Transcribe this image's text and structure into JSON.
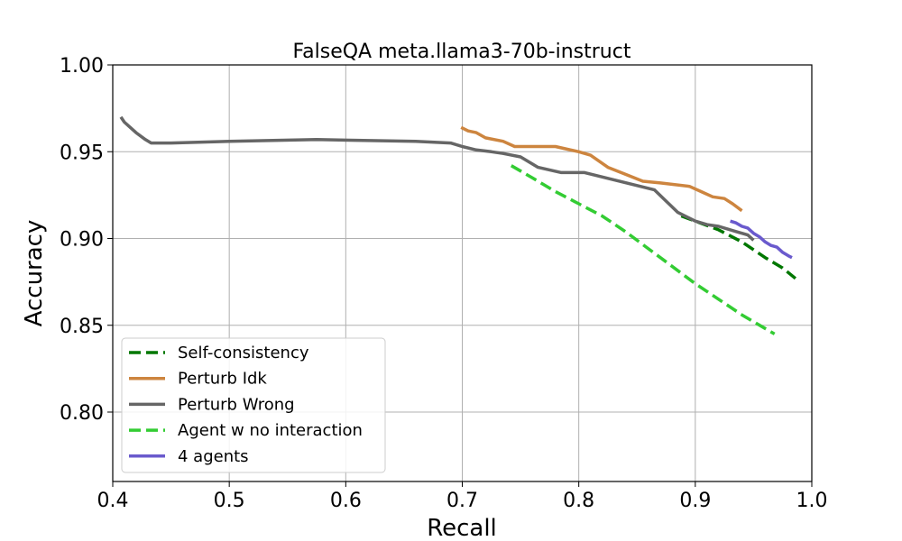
{
  "chart_data": {
    "type": "line",
    "title": "FalseQA meta.llama3-70b-instruct",
    "xlabel": "Recall",
    "ylabel": "Accuracy",
    "xlim": [
      0.4,
      1.0
    ],
    "ylim": [
      0.76,
      1.0
    ],
    "xticks": [
      "0.4",
      "0.5",
      "0.6",
      "0.7",
      "0.8",
      "0.9",
      "1.0"
    ],
    "xtick_values": [
      0.4,
      0.5,
      0.6,
      0.7,
      0.8,
      0.9,
      1.0
    ],
    "yticks": [
      "0.80",
      "0.85",
      "0.90",
      "0.95",
      "1.00"
    ],
    "ytick_values": [
      0.8,
      0.85,
      0.9,
      0.95,
      1.0
    ],
    "grid": true,
    "legend_position": "lower-left",
    "series": [
      {
        "name": "Self-consistency",
        "color": "#007700",
        "dash": true,
        "points": [
          [
            0.888,
            0.913
          ],
          [
            0.9,
            0.91
          ],
          [
            0.92,
            0.905
          ],
          [
            0.94,
            0.898
          ],
          [
            0.96,
            0.889
          ],
          [
            0.975,
            0.883
          ],
          [
            0.986,
            0.877
          ]
        ]
      },
      {
        "name": "Perturb Idk",
        "color": "#cd853f",
        "dash": false,
        "points": [
          [
            0.699,
            0.964
          ],
          [
            0.705,
            0.962
          ],
          [
            0.712,
            0.961
          ],
          [
            0.72,
            0.958
          ],
          [
            0.735,
            0.956
          ],
          [
            0.745,
            0.953
          ],
          [
            0.76,
            0.953
          ],
          [
            0.78,
            0.953
          ],
          [
            0.8,
            0.95
          ],
          [
            0.81,
            0.948
          ],
          [
            0.825,
            0.941
          ],
          [
            0.84,
            0.937
          ],
          [
            0.855,
            0.933
          ],
          [
            0.87,
            0.932
          ],
          [
            0.895,
            0.93
          ],
          [
            0.905,
            0.927
          ],
          [
            0.915,
            0.924
          ],
          [
            0.925,
            0.923
          ],
          [
            0.932,
            0.92
          ],
          [
            0.94,
            0.916
          ]
        ]
      },
      {
        "name": "Perturb Wrong",
        "color": "#666666",
        "dash": false,
        "points": [
          [
            0.407,
            0.97
          ],
          [
            0.41,
            0.967
          ],
          [
            0.415,
            0.964
          ],
          [
            0.42,
            0.961
          ],
          [
            0.428,
            0.957
          ],
          [
            0.433,
            0.955
          ],
          [
            0.45,
            0.955
          ],
          [
            0.5,
            0.956
          ],
          [
            0.575,
            0.957
          ],
          [
            0.66,
            0.956
          ],
          [
            0.69,
            0.955
          ],
          [
            0.7,
            0.953
          ],
          [
            0.712,
            0.951
          ],
          [
            0.725,
            0.95
          ],
          [
            0.735,
            0.949
          ],
          [
            0.75,
            0.947
          ],
          [
            0.765,
            0.941
          ],
          [
            0.785,
            0.938
          ],
          [
            0.805,
            0.938
          ],
          [
            0.865,
            0.928
          ],
          [
            0.885,
            0.915
          ],
          [
            0.9,
            0.91
          ],
          [
            0.91,
            0.908
          ],
          [
            0.92,
            0.907
          ],
          [
            0.935,
            0.904
          ],
          [
            0.945,
            0.902
          ],
          [
            0.95,
            0.899
          ]
        ]
      },
      {
        "name": "Agent w no interaction",
        "color": "#33cc33",
        "dash": true,
        "points": [
          [
            0.742,
            0.942
          ],
          [
            0.76,
            0.935
          ],
          [
            0.78,
            0.927
          ],
          [
            0.8,
            0.92
          ],
          [
            0.82,
            0.913
          ],
          [
            0.84,
            0.904
          ],
          [
            0.86,
            0.894
          ],
          [
            0.88,
            0.884
          ],
          [
            0.9,
            0.874
          ],
          [
            0.92,
            0.865
          ],
          [
            0.94,
            0.856
          ],
          [
            0.968,
            0.845
          ]
        ]
      },
      {
        "name": "4 agents",
        "color": "#6a5acd",
        "dash": false,
        "points": [
          [
            0.93,
            0.91
          ],
          [
            0.935,
            0.909
          ],
          [
            0.94,
            0.907
          ],
          [
            0.945,
            0.906
          ],
          [
            0.95,
            0.903
          ],
          [
            0.955,
            0.901
          ],
          [
            0.96,
            0.898
          ],
          [
            0.965,
            0.896
          ],
          [
            0.97,
            0.895
          ],
          [
            0.975,
            0.892
          ],
          [
            0.98,
            0.89
          ],
          [
            0.983,
            0.889
          ]
        ]
      }
    ]
  }
}
